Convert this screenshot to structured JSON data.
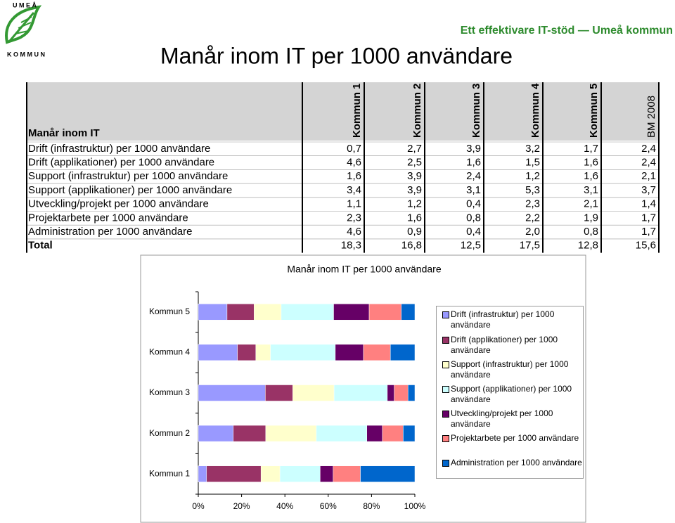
{
  "header": {
    "logo_top": "U M E Å",
    "logo_bottom": "K O M M U N",
    "tagline": "Ett effektivare IT-stöd — Umeå kommun",
    "title": "Manår inom IT per 1000 användare"
  },
  "table": {
    "columns": [
      "Manår inom IT",
      "Kommun 1",
      "Kommun 2",
      "Kommun 3",
      "Kommun 4",
      "Kommun 5",
      "BM 2008"
    ],
    "rows": [
      [
        "Drift (infrastruktur) per 1000 användare",
        "0,7",
        "2,7",
        "3,9",
        "3,2",
        "1,7",
        "2,4"
      ],
      [
        "Drift (applikationer) per 1000 användare",
        "4,6",
        "2,5",
        "1,6",
        "1,5",
        "1,6",
        "2,4"
      ],
      [
        "Support (infrastruktur) per 1000 användare",
        "1,6",
        "3,9",
        "2,4",
        "1,2",
        "1,6",
        "2,1"
      ],
      [
        "Support (applikationer) per 1000 användare",
        "3,4",
        "3,9",
        "3,1",
        "5,3",
        "3,1",
        "3,7"
      ],
      [
        "Utveckling/projekt per 1000 användare",
        "1,1",
        "1,2",
        "0,4",
        "2,3",
        "2,1",
        "1,4"
      ],
      [
        "Projektarbete per 1000 användare",
        "2,3",
        "1,6",
        "0,8",
        "2,2",
        "1,9",
        "1,7"
      ],
      [
        "Administration per 1000 användare",
        "4,6",
        "0,9",
        "0,4",
        "2,0",
        "0,8",
        "1,7"
      ],
      [
        "Total",
        "18,3",
        "16,8",
        "12,5",
        "17,5",
        "12,8",
        "15,6"
      ]
    ]
  },
  "chart_data": {
    "type": "bar100h",
    "title": "Manår inom IT per 1000 användare",
    "categories": [
      "Kommun 1",
      "Kommun 2",
      "Kommun 3",
      "Kommun 4",
      "Kommun 5"
    ],
    "series": [
      {
        "name": "Drift (infrastruktur) per 1000 användare",
        "color": "#9999ff",
        "values": [
          0.7,
          2.7,
          3.9,
          3.2,
          1.7
        ]
      },
      {
        "name": "Drift (applikationer) per 1000 användare",
        "color": "#993366",
        "values": [
          4.6,
          2.5,
          1.6,
          1.5,
          1.6
        ]
      },
      {
        "name": "Support (infrastruktur) per 1000 användare",
        "color": "#ffffcc",
        "values": [
          1.6,
          3.9,
          2.4,
          1.2,
          1.6
        ]
      },
      {
        "name": "Support (applikationer) per 1000 användare",
        "color": "#ccffff",
        "values": [
          3.4,
          3.9,
          3.1,
          5.3,
          3.1
        ]
      },
      {
        "name": "Utveckling/projekt per 1000 användare",
        "color": "#660066",
        "values": [
          1.1,
          1.2,
          0.4,
          2.3,
          2.1
        ]
      },
      {
        "name": "Projektarbete per 1000 användare",
        "color": "#ff8080",
        "values": [
          2.3,
          1.6,
          0.8,
          2.2,
          1.9
        ]
      },
      {
        "name": "Administration per 1000 användare",
        "color": "#0066cc",
        "values": [
          4.6,
          0.9,
          0.4,
          2.0,
          0.8
        ]
      }
    ],
    "xlim": [
      0,
      100
    ],
    "xticks": [
      {
        "value": 0,
        "label": "0%"
      },
      {
        "value": 20,
        "label": "20%"
      },
      {
        "value": 40,
        "label": "40%"
      },
      {
        "value": 60,
        "label": "60%"
      },
      {
        "value": 80,
        "label": "80%"
      },
      {
        "value": 100,
        "label": "100%"
      }
    ]
  }
}
